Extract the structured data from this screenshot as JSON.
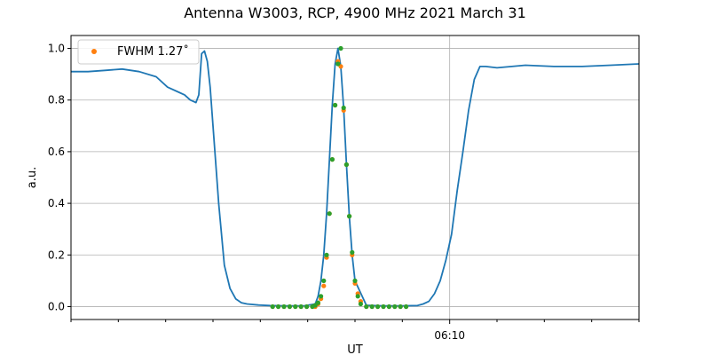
{
  "chart_data": {
    "type": "line",
    "title": "Antenna W3003, RCP, 4900 MHz 2021 March 31",
    "xlabel": "UT",
    "ylabel": "a.u.",
    "ylim": [
      -0.05,
      1.05
    ],
    "xlim": [
      0,
      1
    ],
    "yticks": [
      0.0,
      0.2,
      0.4,
      0.6,
      0.8,
      1.0
    ],
    "ytick_labels": [
      "0.0",
      "0.2",
      "0.4",
      "0.6",
      "0.8",
      "1.0"
    ],
    "xticks_major": [
      {
        "x": 0.6667,
        "label": "06:10"
      }
    ],
    "xticks_minor": [
      0.0,
      0.0833,
      0.1667,
      0.25,
      0.3333,
      0.4167,
      0.5,
      0.5833,
      0.75,
      0.8333,
      0.9167,
      1.0
    ],
    "grid": true,
    "legend": {
      "placement": "top-left",
      "entries": [
        {
          "label": "FWHM 1.27˚",
          "color": "#ff7f0e"
        }
      ]
    },
    "series": [
      {
        "kind": "line",
        "color": "#1f77b4",
        "x": [
          0.0,
          0.03,
          0.06,
          0.09,
          0.12,
          0.15,
          0.17,
          0.19,
          0.2,
          0.21,
          0.22,
          0.225,
          0.23,
          0.235,
          0.24,
          0.245,
          0.25,
          0.26,
          0.27,
          0.28,
          0.29,
          0.3,
          0.31,
          0.33,
          0.35,
          0.38,
          0.41,
          0.43,
          0.435,
          0.44,
          0.445,
          0.45,
          0.455,
          0.46,
          0.465,
          0.47,
          0.475,
          0.48,
          0.485,
          0.49,
          0.495,
          0.5,
          0.52,
          0.55,
          0.58,
          0.61,
          0.62,
          0.63,
          0.64,
          0.65,
          0.66,
          0.67,
          0.68,
          0.69,
          0.7,
          0.705,
          0.71,
          0.72,
          0.73,
          0.75,
          0.8,
          0.85,
          0.9,
          0.95,
          1.0
        ],
        "y": [
          0.91,
          0.91,
          0.915,
          0.92,
          0.91,
          0.89,
          0.85,
          0.83,
          0.82,
          0.8,
          0.79,
          0.82,
          0.98,
          0.99,
          0.95,
          0.85,
          0.7,
          0.4,
          0.16,
          0.07,
          0.03,
          0.015,
          0.01,
          0.006,
          0.004,
          0.003,
          0.003,
          0.01,
          0.04,
          0.1,
          0.2,
          0.36,
          0.57,
          0.78,
          0.94,
          1.0,
          0.93,
          0.77,
          0.55,
          0.35,
          0.2,
          0.1,
          0.005,
          0.003,
          0.003,
          0.004,
          0.01,
          0.02,
          0.05,
          0.1,
          0.18,
          0.28,
          0.45,
          0.6,
          0.76,
          0.82,
          0.88,
          0.93,
          0.93,
          0.925,
          0.935,
          0.93,
          0.93,
          0.935,
          0.94
        ]
      },
      {
        "kind": "scatter",
        "name": "FWHM 1.27˚",
        "color": "#ff7f0e",
        "x": [
          0.355,
          0.365,
          0.375,
          0.385,
          0.395,
          0.405,
          0.415,
          0.425,
          0.43,
          0.435,
          0.44,
          0.445,
          0.45,
          0.455,
          0.46,
          0.465,
          0.47,
          0.475,
          0.48,
          0.485,
          0.49,
          0.495,
          0.5,
          0.505,
          0.51,
          0.52,
          0.53,
          0.54,
          0.55,
          0.56,
          0.57,
          0.58,
          0.59
        ],
        "y": [
          0.0,
          0.0,
          0.0,
          0.0,
          0.0,
          0.0,
          0.0,
          0.0,
          0.0,
          0.01,
          0.03,
          0.08,
          0.19,
          0.36,
          0.57,
          0.78,
          0.95,
          0.93,
          0.76,
          0.55,
          0.35,
          0.2,
          0.09,
          0.05,
          0.02,
          0.0,
          0.0,
          0.0,
          0.0,
          0.0,
          0.0,
          0.0,
          0.0
        ]
      },
      {
        "kind": "scatter",
        "color": "#2ca02c",
        "x": [
          0.355,
          0.365,
          0.375,
          0.385,
          0.395,
          0.405,
          0.415,
          0.425,
          0.43,
          0.435,
          0.44,
          0.445,
          0.45,
          0.455,
          0.46,
          0.465,
          0.47,
          0.475,
          0.48,
          0.485,
          0.49,
          0.495,
          0.5,
          0.505,
          0.51,
          0.52,
          0.53,
          0.54,
          0.55,
          0.56,
          0.57,
          0.58,
          0.59
        ],
        "y": [
          0.0,
          0.0,
          0.0,
          0.0,
          0.0,
          0.0,
          0.0,
          0.0,
          0.005,
          0.015,
          0.04,
          0.1,
          0.2,
          0.36,
          0.57,
          0.78,
          0.94,
          1.0,
          0.77,
          0.55,
          0.35,
          0.21,
          0.1,
          0.04,
          0.01,
          0.0,
          0.0,
          0.0,
          0.0,
          0.0,
          0.0,
          0.0,
          0.0
        ]
      }
    ]
  }
}
